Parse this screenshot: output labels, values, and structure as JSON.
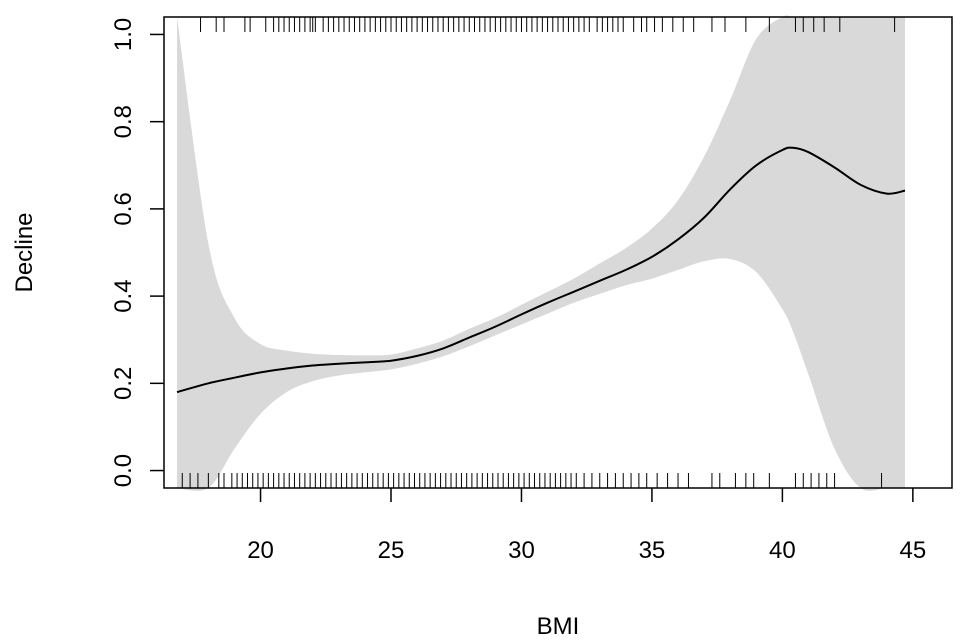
{
  "chart_data": {
    "type": "line",
    "title": "",
    "xlabel": "BMI",
    "ylabel": "Decline",
    "xlim": [
      16.3,
      46.5
    ],
    "ylim": [
      -0.04,
      1.04
    ],
    "xticks": [
      20,
      25,
      30,
      35,
      40,
      45
    ],
    "yticks": [
      0.0,
      0.2,
      0.4,
      0.6,
      0.8,
      1.0
    ],
    "xtick_labels": [
      "20",
      "25",
      "30",
      "35",
      "40",
      "45"
    ],
    "ytick_labels": [
      "0.0",
      "0.2",
      "0.4",
      "0.6",
      "0.8",
      "1.0"
    ],
    "grid": false,
    "legend": "none",
    "colors": {
      "line": "#000000",
      "band": "#d9d9d9",
      "rug": "#000000"
    },
    "series": [
      {
        "x": [
          16.8,
          18,
          19,
          20,
          21,
          22,
          23,
          24,
          25,
          26,
          27,
          28,
          29,
          30,
          31,
          32,
          33,
          34,
          35,
          36,
          37,
          38,
          39,
          40,
          40.4,
          41,
          42,
          43,
          44,
          44.7
        ],
        "y": [
          0.18,
          0.2,
          0.213,
          0.225,
          0.234,
          0.241,
          0.245,
          0.248,
          0.252,
          0.263,
          0.28,
          0.305,
          0.33,
          0.358,
          0.385,
          0.41,
          0.435,
          0.46,
          0.49,
          0.53,
          0.58,
          0.645,
          0.7,
          0.735,
          0.74,
          0.73,
          0.695,
          0.655,
          0.635,
          0.642
        ],
        "lower": [
          -0.04,
          -0.04,
          0.05,
          0.13,
          0.18,
          0.205,
          0.218,
          0.225,
          0.232,
          0.245,
          0.262,
          0.285,
          0.31,
          0.335,
          0.36,
          0.385,
          0.405,
          0.425,
          0.44,
          0.46,
          0.48,
          0.485,
          0.455,
          0.37,
          0.32,
          0.22,
          0.05,
          -0.04,
          -0.04,
          -0.04
        ],
        "upper": [
          1.04,
          0.52,
          0.35,
          0.29,
          0.275,
          0.268,
          0.265,
          0.264,
          0.266,
          0.28,
          0.298,
          0.325,
          0.35,
          0.38,
          0.41,
          0.44,
          0.475,
          0.51,
          0.555,
          0.62,
          0.72,
          0.85,
          0.99,
          1.04,
          1.04,
          1.04,
          1.04,
          1.04,
          1.04,
          1.04
        ]
      }
    ],
    "rug_top": [
      17.7,
      18.3,
      18.6,
      19.4,
      19.6,
      20.2,
      20.5,
      20.7,
      20.9,
      21.1,
      21.3,
      21.5,
      21.7,
      21.9,
      22.0,
      22.1,
      22.4,
      22.6,
      22.8,
      23.0,
      23.2,
      23.4,
      23.6,
      23.8,
      24.0,
      24.2,
      24.4,
      24.6,
      24.8,
      25.0,
      25.2,
      25.4,
      25.6,
      25.8,
      26.0,
      26.2,
      26.4,
      26.6,
      26.8,
      27.0,
      27.2,
      27.4,
      27.6,
      27.8,
      28.0,
      28.2,
      28.4,
      28.6,
      28.8,
      29.0,
      29.2,
      29.4,
      29.6,
      29.8,
      30.0,
      30.2,
      30.4,
      30.6,
      30.8,
      31.0,
      31.2,
      31.4,
      31.6,
      31.8,
      32.0,
      32.2,
      32.4,
      32.6,
      32.9,
      33.1,
      33.3,
      33.5,
      33.7,
      33.9,
      34.3,
      34.6,
      34.8,
      35.1,
      35.4,
      35.8,
      36.2,
      36.6,
      37.3,
      37.8,
      38.6,
      39.5,
      40.5,
      40.8,
      41.2,
      41.6,
      42.2,
      44.3
    ],
    "rug_bottom": [
      17.0,
      17.3,
      17.6,
      18.0,
      18.4,
      18.6,
      18.9,
      19.1,
      19.3,
      19.5,
      19.7,
      19.9,
      20.1,
      20.3,
      20.5,
      20.7,
      20.9,
      21.1,
      21.3,
      21.5,
      21.7,
      21.9,
      22.1,
      22.3,
      22.5,
      22.7,
      22.9,
      23.1,
      23.3,
      23.5,
      23.7,
      23.9,
      24.1,
      24.3,
      24.5,
      24.7,
      24.9,
      25.1,
      25.3,
      25.5,
      25.7,
      25.9,
      26.1,
      26.3,
      26.5,
      26.7,
      26.9,
      27.1,
      27.3,
      27.5,
      27.7,
      27.9,
      28.1,
      28.3,
      28.5,
      28.7,
      28.9,
      29.1,
      29.3,
      29.5,
      29.7,
      29.9,
      30.1,
      30.3,
      30.5,
      30.7,
      30.9,
      31.1,
      31.3,
      31.5,
      31.7,
      31.9,
      32.1,
      32.4,
      32.7,
      33.0,
      33.3,
      33.6,
      33.9,
      34.2,
      34.5,
      34.8,
      35.2,
      35.6,
      36.0,
      36.4,
      37.3,
      37.6,
      38.2,
      38.6,
      38.9,
      39.5,
      40.5,
      40.8,
      41.1,
      41.4,
      41.7,
      42.0,
      43.8
    ]
  }
}
